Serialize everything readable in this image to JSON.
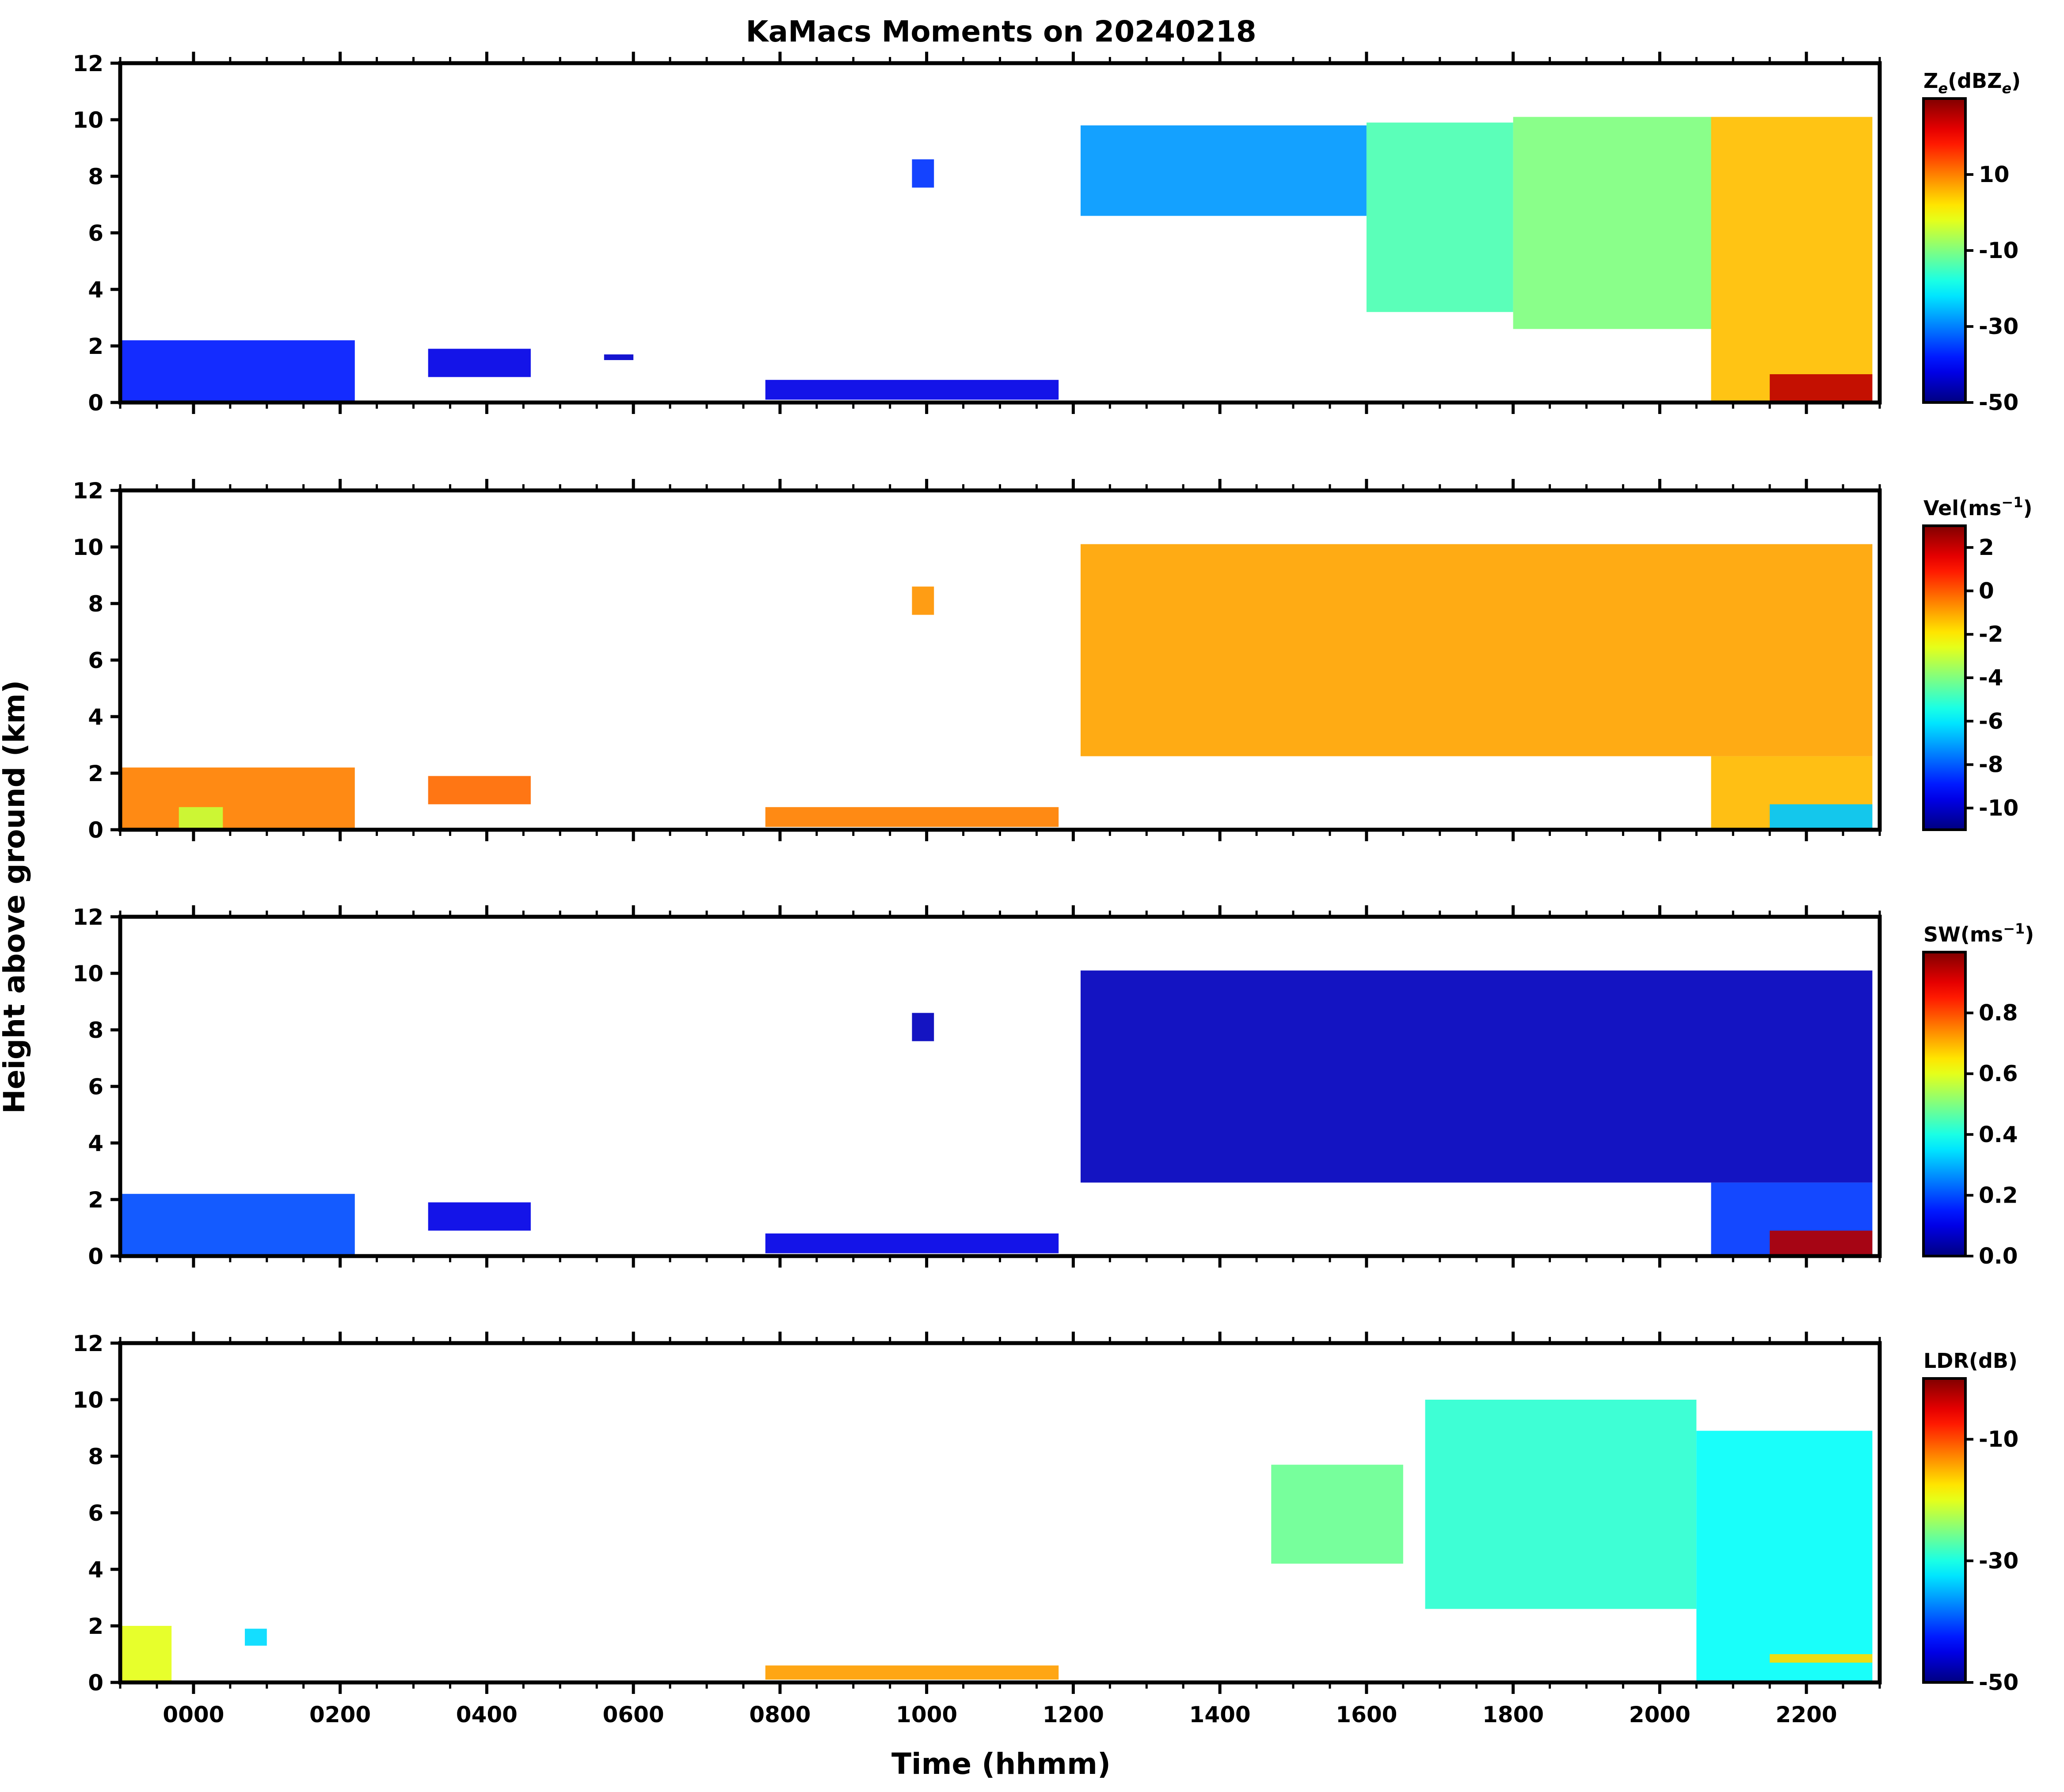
{
  "chart_data": {
    "type": "heatmap",
    "title": "KaMacs Moments on 20240218",
    "xlabel": "Time (hhmm)",
    "ylabel": "Height above ground (km)",
    "x_ticks": [
      "0000",
      "0200",
      "0400",
      "0600",
      "0800",
      "1000",
      "1200",
      "1400",
      "1600",
      "1800",
      "2000",
      "2200"
    ],
    "xlim_hours": [
      -1.0,
      23.0
    ],
    "ylim_km": [
      0,
      12
    ],
    "y_ticks": [
      "0",
      "2",
      "4",
      "6",
      "8",
      "10",
      "12"
    ],
    "panels": [
      {
        "variable": "Ze",
        "colorbar_label": "Ze(dBZe)",
        "colorbar_label_main": "Z",
        "colorbar_label_sub": "e",
        "colorbar_label_rest": "(dBZ",
        "colorbar_label_tail": ")",
        "vmin": -50,
        "vmax": 30,
        "colorbar_ticks": [
          "10",
          "-10",
          "-30",
          "-50"
        ],
        "colorbar_tick_values": [
          10,
          -10,
          -30,
          -50
        ],
        "echo_regions": [
          {
            "t0": -1.0,
            "t1": 2.2,
            "z0": 0.0,
            "z1": 2.2,
            "value": -38
          },
          {
            "t0": 3.2,
            "t1": 4.6,
            "z0": 0.9,
            "z1": 1.9,
            "value": -42
          },
          {
            "t0": 5.6,
            "t1": 6.0,
            "z0": 1.5,
            "z1": 1.7,
            "value": -44
          },
          {
            "t0": 7.8,
            "t1": 11.8,
            "z0": 0.1,
            "z1": 0.8,
            "value": -42
          },
          {
            "t0": 9.8,
            "t1": 10.1,
            "z0": 7.6,
            "z1": 8.6,
            "value": -36
          },
          {
            "t0": 12.1,
            "t1": 16.0,
            "z0": 6.6,
            "z1": 9.8,
            "value": -28
          },
          {
            "t0": 16.0,
            "t1": 18.0,
            "z0": 3.2,
            "z1": 9.9,
            "value": -14
          },
          {
            "t0": 18.0,
            "t1": 20.7,
            "z0": 2.6,
            "z1": 10.1,
            "value": -10
          },
          {
            "t0": 20.7,
            "t1": 22.9,
            "z0": 0.0,
            "z1": 10.1,
            "value": 5
          },
          {
            "t0": 21.5,
            "t1": 22.9,
            "z0": 0.0,
            "z1": 1.0,
            "value": 25
          }
        ]
      },
      {
        "variable": "Vel",
        "colorbar_label": "Vel(ms-1)",
        "colorbar_label_main": "Vel(ms",
        "colorbar_label_sup": "−1",
        "colorbar_label_tail": ")",
        "vmin": -11,
        "vmax": 3,
        "colorbar_ticks": [
          "2",
          "0",
          "-2",
          "-4",
          "-6",
          "-8",
          "-10"
        ],
        "colorbar_tick_values": [
          2,
          0,
          -2,
          -4,
          -6,
          -8,
          -10
        ],
        "echo_regions": [
          {
            "t0": -1.0,
            "t1": 2.2,
            "z0": 0.0,
            "z1": 2.2,
            "value": -0.5
          },
          {
            "t0": -0.2,
            "t1": 0.4,
            "z0": 0.0,
            "z1": 0.8,
            "value": -3.0
          },
          {
            "t0": 3.2,
            "t1": 4.6,
            "z0": 0.9,
            "z1": 1.9,
            "value": -0.2
          },
          {
            "t0": 7.8,
            "t1": 11.8,
            "z0": 0.1,
            "z1": 0.8,
            "value": -0.5
          },
          {
            "t0": 9.8,
            "t1": 10.1,
            "z0": 7.6,
            "z1": 8.6,
            "value": -0.8
          },
          {
            "t0": 12.1,
            "t1": 22.9,
            "z0": 2.6,
            "z1": 10.1,
            "value": -1.0
          },
          {
            "t0": 20.7,
            "t1": 22.9,
            "z0": 0.0,
            "z1": 2.6,
            "value": -1.3
          },
          {
            "t0": 21.5,
            "t1": 22.9,
            "z0": 0.0,
            "z1": 0.9,
            "value": -6.5
          }
        ]
      },
      {
        "variable": "SW",
        "colorbar_label": "SW(ms-1)",
        "colorbar_label_main": "SW(ms",
        "colorbar_label_sup": "−1",
        "colorbar_label_tail": ")",
        "vmin": 0.0,
        "vmax": 1.0,
        "colorbar_ticks": [
          "0.8",
          "0.6",
          "0.4",
          "0.2",
          "0.0"
        ],
        "colorbar_tick_values": [
          0.8,
          0.6,
          0.4,
          0.2,
          0.0
        ],
        "echo_regions": [
          {
            "t0": -1.0,
            "t1": 2.2,
            "z0": 0.0,
            "z1": 2.2,
            "value": 0.2
          },
          {
            "t0": 3.2,
            "t1": 4.6,
            "z0": 0.9,
            "z1": 1.9,
            "value": 0.1
          },
          {
            "t0": 7.8,
            "t1": 11.8,
            "z0": 0.1,
            "z1": 0.8,
            "value": 0.1
          },
          {
            "t0": 9.8,
            "t1": 10.1,
            "z0": 7.6,
            "z1": 8.6,
            "value": 0.06
          },
          {
            "t0": 12.1,
            "t1": 22.9,
            "z0": 2.6,
            "z1": 10.1,
            "value": 0.06
          },
          {
            "t0": 20.7,
            "t1": 22.9,
            "z0": 0.0,
            "z1": 2.6,
            "value": 0.18
          },
          {
            "t0": 21.5,
            "t1": 22.9,
            "z0": 0.0,
            "z1": 0.9,
            "value": 0.95
          }
        ]
      },
      {
        "variable": "LDR",
        "colorbar_label": "LDR(dB)",
        "colorbar_label_main": "LDR(dB)",
        "vmin": -50,
        "vmax": 0,
        "colorbar_ticks": [
          "-10",
          "-30",
          "-50"
        ],
        "colorbar_tick_values": [
          -10,
          -30,
          -50
        ],
        "echo_regions": [
          {
            "t0": -1.0,
            "t1": -0.3,
            "z0": 0.0,
            "z1": 2.0,
            "value": -20
          },
          {
            "t0": 0.7,
            "t1": 1.0,
            "z0": 1.3,
            "z1": 1.9,
            "value": -33
          },
          {
            "t0": 7.8,
            "t1": 11.8,
            "z0": 0.1,
            "z1": 0.6,
            "value": -14
          },
          {
            "t0": 14.7,
            "t1": 16.5,
            "z0": 4.2,
            "z1": 7.7,
            "value": -26
          },
          {
            "t0": 16.8,
            "t1": 20.5,
            "z0": 2.6,
            "z1": 10.0,
            "value": -29
          },
          {
            "t0": 20.5,
            "t1": 22.9,
            "z0": 0.0,
            "z1": 8.9,
            "value": -31
          },
          {
            "t0": 21.5,
            "t1": 22.9,
            "z0": 0.7,
            "z1": 1.0,
            "value": -17
          }
        ]
      }
    ]
  }
}
